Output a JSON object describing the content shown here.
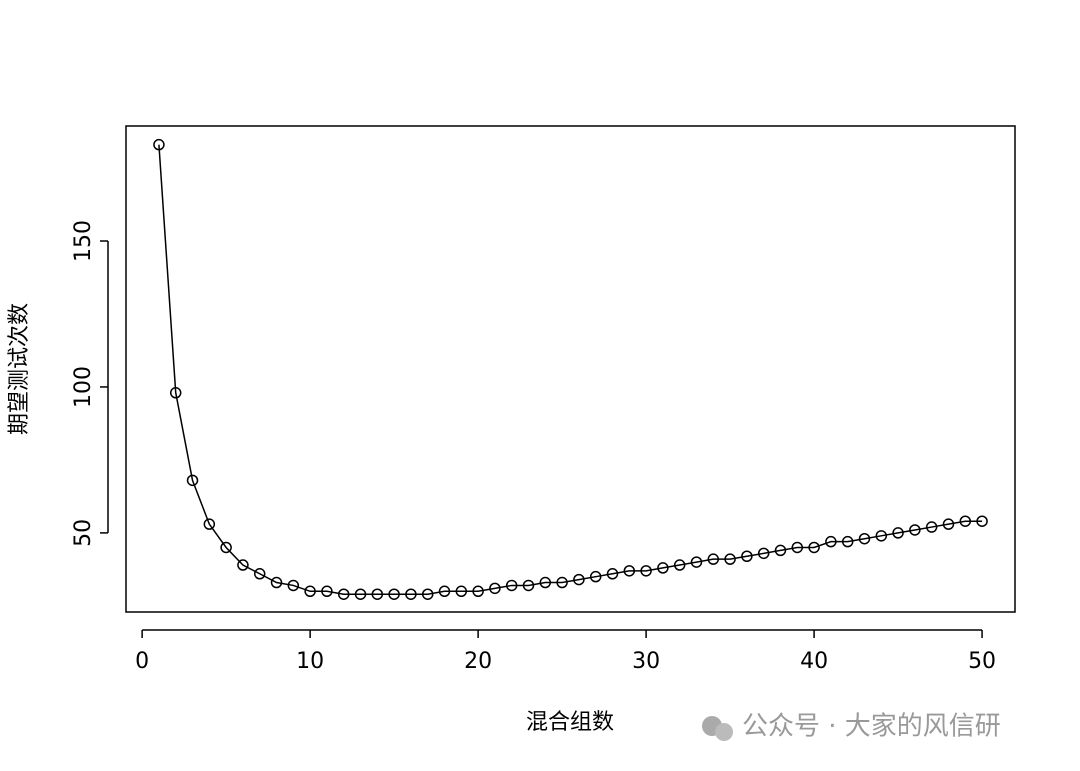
{
  "chart_data": {
    "type": "line",
    "x_label": "混合组数",
    "y_label": "期望测试次数",
    "x": [
      1,
      2,
      3,
      4,
      5,
      6,
      7,
      8,
      9,
      10,
      11,
      12,
      13,
      14,
      15,
      16,
      17,
      18,
      19,
      20,
      21,
      22,
      23,
      24,
      25,
      26,
      27,
      28,
      29,
      30,
      31,
      32,
      33,
      34,
      35,
      36,
      37,
      38,
      39,
      40,
      41,
      42,
      43,
      44,
      45,
      46,
      47,
      48,
      49,
      50
    ],
    "values": [
      183,
      98,
      68,
      53,
      45,
      39,
      36,
      33,
      32,
      30,
      30,
      29,
      29,
      29,
      29,
      29,
      29,
      30,
      30,
      30,
      31,
      32,
      32,
      33,
      33,
      34,
      35,
      36,
      37,
      37,
      38,
      39,
      40,
      41,
      41,
      42,
      43,
      44,
      45,
      45,
      47,
      47,
      48,
      49,
      50,
      51,
      52,
      53,
      54,
      54
    ],
    "color": "#000000",
    "xlim": [
      -0.96,
      51.96
    ],
    "xticks": [
      0,
      10,
      20,
      30,
      40,
      50
    ],
    "ylim": [
      22.9,
      189.4
    ],
    "yticks": [
      50,
      100,
      150
    ],
    "watermark": "公众号 · 大家的风信研"
  }
}
